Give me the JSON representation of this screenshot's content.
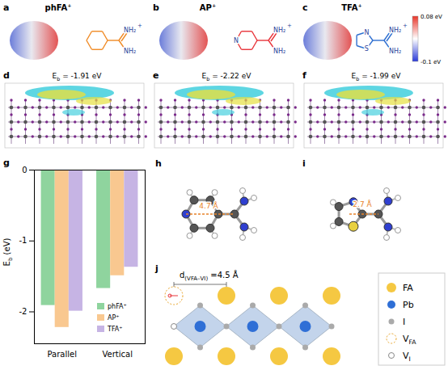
{
  "figure": {
    "molecules": [
      {
        "letter": "a",
        "title": "phFA⁺",
        "ring": 6,
        "color": "#f08a24",
        "atoms": [
          "NH₂",
          "NH₂"
        ],
        "charge": "+"
      },
      {
        "letter": "b",
        "title": "AP⁺",
        "ring": 6,
        "color": "#e8343a",
        "atoms": [
          "NH₂",
          "NH₂",
          "N"
        ],
        "charge": "+"
      },
      {
        "letter": "c",
        "title": "TFA⁺",
        "ring": 5,
        "color": "#2f6fd0",
        "atoms": [
          "NH₂",
          "NH₂",
          "N",
          "S"
        ],
        "charge": "+"
      }
    ],
    "colorbar": {
      "min": -0.1,
      "max": 0.08,
      "ticks": [
        {
          "value": 0.08,
          "label": "0.08 eV"
        },
        {
          "value": -0.1,
          "label": "-0.1 eV"
        }
      ]
    },
    "adsorption": {
      "symbol": "E",
      "subscript": "b",
      "panels": [
        {
          "letter": "d",
          "text": " = -1.91 eV"
        },
        {
          "letter": "e",
          "text": " = -2.22 eV"
        },
        {
          "letter": "f",
          "text": " = -1.99 eV"
        }
      ]
    },
    "distances": [
      {
        "letter": "h",
        "label": "4.7 Å"
      },
      {
        "letter": "i",
        "label": "2.7 Å"
      }
    ],
    "lattice": {
      "letter": "j",
      "distance": {
        "symbol": "d",
        "subscript": "(VFA–VI)",
        "text": " =4.5 Å"
      },
      "legend": [
        {
          "label": "FA"
        },
        {
          "label": "Pb"
        },
        {
          "label": "I"
        },
        {
          "symbol": "V",
          "subscript": "FA"
        },
        {
          "symbol": "V",
          "subscript": "I"
        }
      ]
    }
  },
  "chart_data": {
    "type": "bar",
    "letter": "g",
    "ylabel": {
      "symbol": "E",
      "subscript": "b",
      "text": " (eV)"
    },
    "categories": [
      "Parallel",
      "Vertical"
    ],
    "series": [
      {
        "name": "phFA⁺",
        "color": "#8fd49e",
        "values": [
          -1.91,
          -1.67
        ]
      },
      {
        "name": "AP⁺",
        "color": "#f9c890",
        "values": [
          -2.22,
          -1.49
        ]
      },
      {
        "name": "TFA⁺",
        "color": "#c6b4e4",
        "values": [
          -1.99,
          -1.37
        ]
      }
    ],
    "ylim": [
      -2.45,
      0
    ],
    "yticks": [
      0,
      -1,
      -2
    ],
    "legend": "lower right",
    "grid": false
  }
}
